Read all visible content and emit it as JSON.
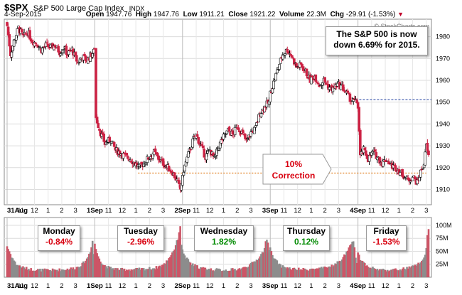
{
  "header": {
    "symbol": "$SPX",
    "name": "S&P 500 Large Cap Index",
    "exchange": "INDX",
    "date": "4-Sep-2015",
    "open_label": "Open",
    "open": "1947.76",
    "high_label": "High",
    "high": "1947.76",
    "low_label": "Low",
    "low": "1911.21",
    "close_label": "Close",
    "close": "1921.22",
    "volume_label": "Volume",
    "volume": "22.3M",
    "chg_label": "Chg",
    "chg": "-29.91 (-1.53%)",
    "chg_color": "#c0002a"
  },
  "watermark": "© StockCharts.com",
  "annotation": {
    "line1": "The S&P 500  is now",
    "line2": "down 6.69% for 2015."
  },
  "correction": {
    "line1": "10%",
    "line2": "Correction",
    "level": 1917.5
  },
  "reference_line": {
    "level": 1951.1
  },
  "days": [
    {
      "name": "Monday",
      "change": "-0.84%",
      "color": "#d8000f"
    },
    {
      "name": "Tuesday",
      "change": "-2.96%",
      "color": "#d8000f"
    },
    {
      "name": "Wednesday",
      "change": "1.82%",
      "color": "#008a00"
    },
    {
      "name": "Thursday",
      "change": "0.12%",
      "color": "#008a00"
    },
    {
      "name": "Friday",
      "change": "-1.53%",
      "color": "#d8000f"
    }
  ],
  "colors": {
    "up": "#ffffff",
    "down": "#cc2244",
    "vol_up": "#8c8c8c",
    "vol_down": "#cc5566",
    "dotted": "#e07b1a",
    "dashed": "#1f3f9f",
    "arrow": "#b00000"
  },
  "chart_data": {
    "type": "candlestick",
    "title": "$SPX S&P 500 Large Cap Index INDX",
    "y_ticks": [
      1910,
      1920,
      1930,
      1940,
      1950,
      1960,
      1970,
      1980
    ],
    "ylim": [
      1903,
      1988
    ],
    "volume_ticks": [
      "100M",
      "75M",
      "50M",
      "25M"
    ],
    "volume_ylim": [
      0,
      115
    ],
    "x_tick_labels": [
      "31Aug",
      "11",
      "12",
      "1",
      "2",
      "3",
      "1Sep",
      "11",
      "12",
      "1",
      "2",
      "3",
      "2Sep",
      "11",
      "12",
      "1",
      "2",
      "3",
      "3Sep",
      "11",
      "12",
      "1",
      "2",
      "3",
      "4Sep",
      "11",
      "12",
      "1",
      "2",
      "3"
    ],
    "x_tick_bars": [
      0,
      12,
      24,
      36,
      48,
      60,
      77,
      89,
      101,
      113,
      125,
      137,
      154,
      166,
      178,
      190,
      202,
      214,
      231,
      243,
      255,
      267,
      279,
      291,
      308,
      320,
      332,
      344,
      356,
      368
    ],
    "session_starts": [
      0,
      77,
      154,
      231,
      308
    ],
    "bars_per_day": 77,
    "close_keyframes": [
      [
        0,
        1985
      ],
      [
        3,
        1972
      ],
      [
        6,
        1978
      ],
      [
        10,
        1984
      ],
      [
        14,
        1980
      ],
      [
        18,
        1982
      ],
      [
        22,
        1978
      ],
      [
        26,
        1977
      ],
      [
        30,
        1974
      ],
      [
        34,
        1976
      ],
      [
        38,
        1975
      ],
      [
        42,
        1976
      ],
      [
        46,
        1973
      ],
      [
        50,
        1975
      ],
      [
        53,
        1972
      ],
      [
        57,
        1974
      ],
      [
        62,
        1968
      ],
      [
        66,
        1971
      ],
      [
        70,
        1969
      ],
      [
        74,
        1972
      ],
      [
        76,
        1973
      ],
      [
        77,
        1975
      ],
      [
        78,
        1943
      ],
      [
        82,
        1936
      ],
      [
        86,
        1931
      ],
      [
        91,
        1933
      ],
      [
        95,
        1928
      ],
      [
        99,
        1927
      ],
      [
        104,
        1925
      ],
      [
        108,
        1924
      ],
      [
        112,
        1922
      ],
      [
        116,
        1920
      ],
      [
        120,
        1922
      ],
      [
        125,
        1925
      ],
      [
        129,
        1927
      ],
      [
        133,
        1924
      ],
      [
        137,
        1922
      ],
      [
        141,
        1920
      ],
      [
        145,
        1918
      ],
      [
        149,
        1914
      ],
      [
        152,
        1910
      ],
      [
        153,
        1913
      ],
      [
        154,
        1915
      ],
      [
        155,
        1919
      ],
      [
        159,
        1926
      ],
      [
        163,
        1932
      ],
      [
        166,
        1935
      ],
      [
        170,
        1930
      ],
      [
        174,
        1925
      ],
      [
        178,
        1928
      ],
      [
        182,
        1924
      ],
      [
        186,
        1930
      ],
      [
        190,
        1934
      ],
      [
        194,
        1937
      ],
      [
        198,
        1935
      ],
      [
        202,
        1939
      ],
      [
        206,
        1936
      ],
      [
        210,
        1932
      ],
      [
        214,
        1936
      ],
      [
        218,
        1938
      ],
      [
        222,
        1945
      ],
      [
        226,
        1948
      ],
      [
        230,
        1950
      ],
      [
        231,
        1954
      ],
      [
        234,
        1959
      ],
      [
        238,
        1966
      ],
      [
        242,
        1972
      ],
      [
        246,
        1974
      ],
      [
        250,
        1971
      ],
      [
        254,
        1966
      ],
      [
        258,
        1967
      ],
      [
        262,
        1964
      ],
      [
        266,
        1960
      ],
      [
        270,
        1962
      ],
      [
        274,
        1958
      ],
      [
        278,
        1960
      ],
      [
        282,
        1957
      ],
      [
        286,
        1956
      ],
      [
        290,
        1958
      ],
      [
        294,
        1957
      ],
      [
        298,
        1954
      ],
      [
        302,
        1951
      ],
      [
        306,
        1950
      ],
      [
        307,
        1950
      ],
      [
        308,
        1948
      ],
      [
        310,
        1925
      ],
      [
        313,
        1928
      ],
      [
        317,
        1924
      ],
      [
        321,
        1927
      ],
      [
        325,
        1925
      ],
      [
        329,
        1922
      ],
      [
        333,
        1924
      ],
      [
        337,
        1921
      ],
      [
        341,
        1920
      ],
      [
        345,
        1918
      ],
      [
        349,
        1916
      ],
      [
        352,
        1914
      ],
      [
        356,
        1916
      ],
      [
        360,
        1913
      ],
      [
        363,
        1918
      ],
      [
        366,
        1922
      ],
      [
        368,
        1930
      ],
      [
        370,
        1925
      ]
    ],
    "volume_keyframes": [
      [
        0,
        60
      ],
      [
        4,
        40
      ],
      [
        8,
        25
      ],
      [
        15,
        18
      ],
      [
        22,
        15
      ],
      [
        30,
        14
      ],
      [
        40,
        14
      ],
      [
        50,
        15
      ],
      [
        60,
        18
      ],
      [
        66,
        25
      ],
      [
        70,
        35
      ],
      [
        73,
        50
      ],
      [
        75,
        70
      ],
      [
        76,
        45
      ],
      [
        77,
        65
      ],
      [
        79,
        45
      ],
      [
        84,
        25
      ],
      [
        90,
        18
      ],
      [
        100,
        15
      ],
      [
        110,
        15
      ],
      [
        120,
        16
      ],
      [
        130,
        18
      ],
      [
        138,
        25
      ],
      [
        143,
        40
      ],
      [
        147,
        55
      ],
      [
        150,
        75
      ],
      [
        152,
        100
      ],
      [
        153,
        60
      ],
      [
        154,
        55
      ],
      [
        156,
        40
      ],
      [
        162,
        25
      ],
      [
        170,
        18
      ],
      [
        180,
        15
      ],
      [
        190,
        14
      ],
      [
        200,
        15
      ],
      [
        208,
        18
      ],
      [
        214,
        25
      ],
      [
        220,
        35
      ],
      [
        225,
        50
      ],
      [
        228,
        75
      ],
      [
        230,
        55
      ],
      [
        231,
        60
      ],
      [
        233,
        40
      ],
      [
        240,
        22
      ],
      [
        250,
        16
      ],
      [
        260,
        15
      ],
      [
        270,
        16
      ],
      [
        280,
        18
      ],
      [
        288,
        25
      ],
      [
        294,
        35
      ],
      [
        300,
        55
      ],
      [
        304,
        70
      ],
      [
        306,
        40
      ],
      [
        307,
        30
      ],
      [
        308,
        50
      ],
      [
        310,
        35
      ],
      [
        316,
        22
      ],
      [
        325,
        15
      ],
      [
        335,
        14
      ],
      [
        345,
        15
      ],
      [
        352,
        18
      ],
      [
        358,
        22
      ],
      [
        362,
        28
      ],
      [
        366,
        35
      ],
      [
        368,
        55
      ],
      [
        369,
        80
      ],
      [
        370,
        90
      ]
    ]
  }
}
